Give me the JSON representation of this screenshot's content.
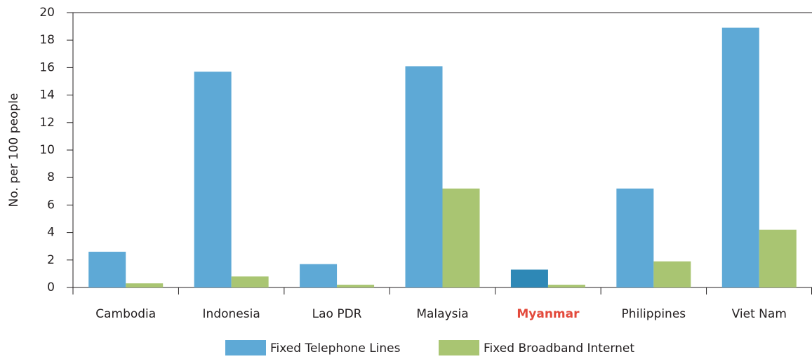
{
  "chart_data": {
    "type": "bar",
    "y_label": "No. per 100 people",
    "categories": [
      "Cambodia",
      "Indonesia",
      "Lao PDR",
      "Malaysia",
      "Myanmar",
      "Philippines",
      "Viet Nam"
    ],
    "series": [
      {
        "name": "Fixed Telephone Lines",
        "color": "#5ea9d6",
        "values": [
          2.6,
          15.7,
          1.7,
          16.1,
          1.3,
          7.2,
          18.9
        ]
      },
      {
        "name": "Fixed Broadband Internet",
        "color": "#a9c572",
        "values": [
          0.3,
          0.8,
          0.2,
          7.2,
          0.2,
          1.9,
          4.2
        ]
      }
    ],
    "highlight_index": 4,
    "highlight_bar_color": "#2e88b6",
    "highlight_label_color": "#e3493b",
    "ylim": [
      0,
      20
    ],
    "yticks": [
      0,
      2,
      4,
      6,
      8,
      10,
      12,
      14,
      16,
      18,
      20
    ]
  }
}
